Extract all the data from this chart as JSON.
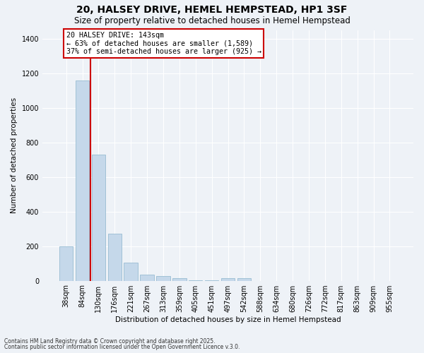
{
  "title": "20, HALSEY DRIVE, HEMEL HEMPSTEAD, HP1 3SF",
  "subtitle": "Size of property relative to detached houses in Hemel Hempstead",
  "xlabel": "Distribution of detached houses by size in Hemel Hempstead",
  "ylabel": "Number of detached properties",
  "bar_color": "#c5d8ea",
  "bar_edge_color": "#8ab4cc",
  "background_color": "#eef2f7",
  "grid_color": "#ffffff",
  "vline_color": "#cc0000",
  "annotation_text": "20 HALSEY DRIVE: 143sqm\n← 63% of detached houses are smaller (1,589)\n37% of semi-detached houses are larger (925) →",
  "annotation_box_color": "#cc0000",
  "categories": [
    "38sqm",
    "84sqm",
    "130sqm",
    "176sqm",
    "221sqm",
    "267sqm",
    "313sqm",
    "359sqm",
    "405sqm",
    "451sqm",
    "497sqm",
    "542sqm",
    "588sqm",
    "634sqm",
    "680sqm",
    "726sqm",
    "772sqm",
    "817sqm",
    "863sqm",
    "909sqm",
    "955sqm"
  ],
  "values": [
    200,
    1160,
    730,
    270,
    105,
    35,
    28,
    15,
    2,
    2,
    15,
    13,
    0,
    0,
    0,
    0,
    0,
    0,
    0,
    0,
    0
  ],
  "ylim": [
    0,
    1450
  ],
  "yticks": [
    0,
    200,
    400,
    600,
    800,
    1000,
    1200,
    1400
  ],
  "footer1": "Contains HM Land Registry data © Crown copyright and database right 2025.",
  "footer2": "Contains public sector information licensed under the Open Government Licence v.3.0."
}
